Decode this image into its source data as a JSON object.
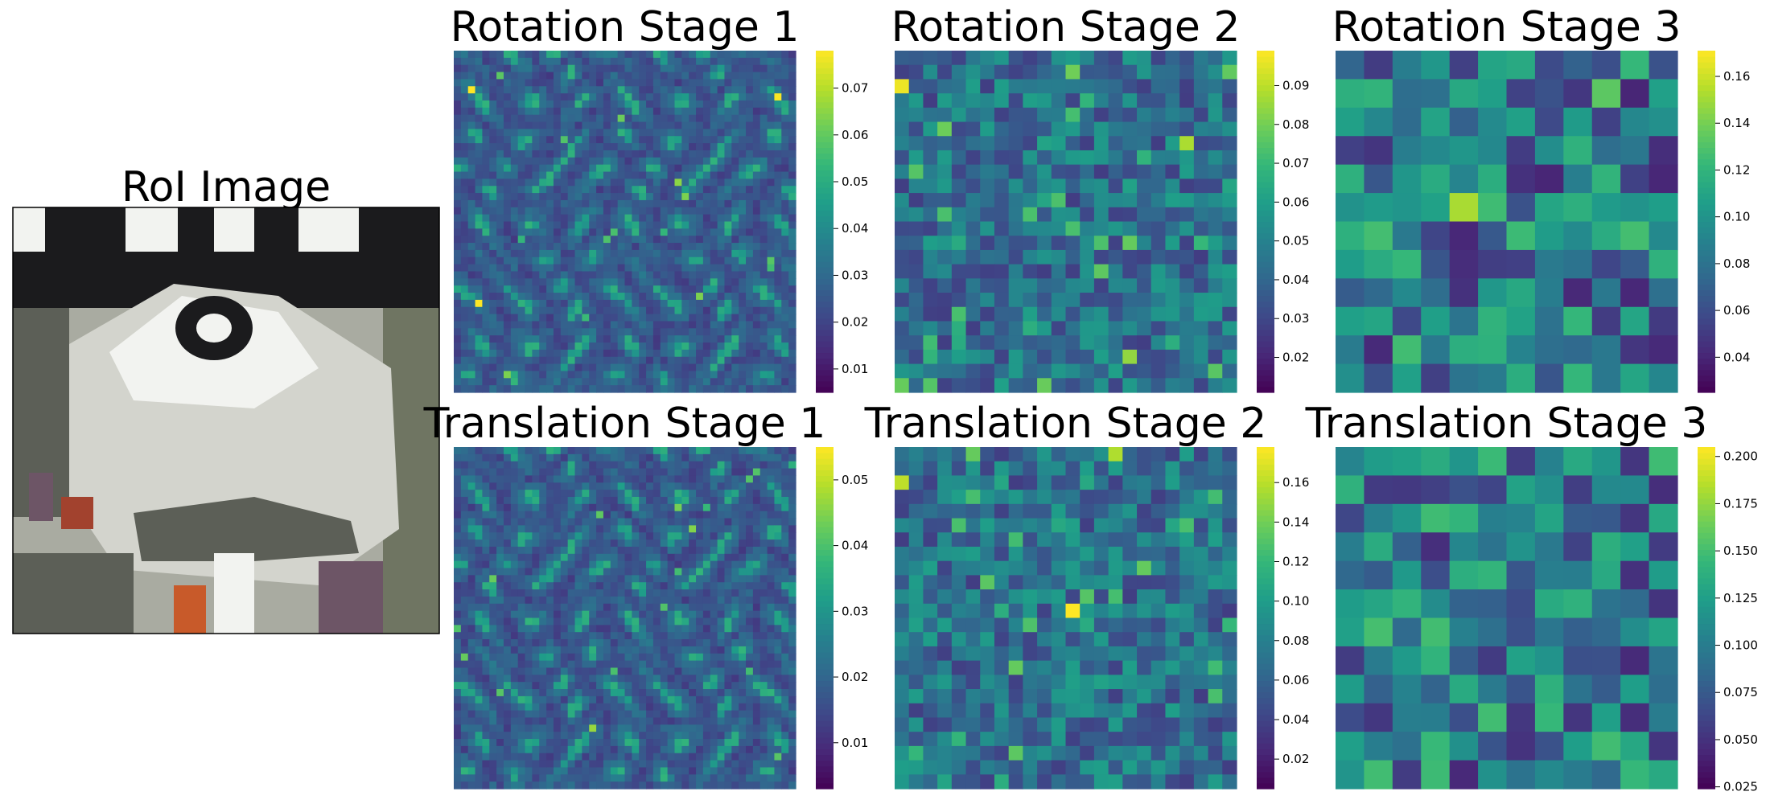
{
  "roi_title": "RoI Image",
  "colormap": "viridis",
  "colormap_stops": [
    "#440154",
    "#482878",
    "#3e4989",
    "#31688e",
    "#26828e",
    "#1f9e89",
    "#35b779",
    "#6ece58",
    "#b5de2b",
    "#fde725"
  ],
  "roi_colors": {
    "white": "#f2f3f0",
    "black": "#1b1b1d",
    "gray_light": "#d3d4cd",
    "gray_mid": "#a9aba1",
    "gray_dark": "#5c5f57",
    "olive": "#6f7562",
    "red": "#a2422e",
    "orange": "#c85a2a",
    "purple": "#6d5566"
  },
  "chart_data": [
    {
      "type": "heatmap",
      "title": "Rotation Stage 1",
      "grid": [
        48,
        48
      ],
      "pattern": "fine",
      "colorbar": {
        "min": 0.005,
        "max": 0.078,
        "ticks": [
          0.01,
          0.02,
          0.03,
          0.04,
          0.05,
          0.06,
          0.07
        ],
        "tick_labels": [
          "0.01",
          "0.02",
          "0.03",
          "0.04",
          "0.05",
          "0.06",
          "0.07"
        ]
      }
    },
    {
      "type": "heatmap",
      "title": "Rotation Stage 2",
      "grid": [
        24,
        24
      ],
      "pattern": "medium",
      "colorbar": {
        "min": 0.011,
        "max": 0.099,
        "ticks": [
          0.02,
          0.03,
          0.04,
          0.05,
          0.06,
          0.07,
          0.08,
          0.09
        ],
        "tick_labels": [
          "0.02",
          "0.03",
          "0.04",
          "0.05",
          "0.06",
          "0.07",
          "0.08",
          "0.09"
        ]
      }
    },
    {
      "type": "heatmap",
      "title": "Rotation Stage 3",
      "grid": [
        12,
        12
      ],
      "pattern": "coarse",
      "colorbar": {
        "min": 0.025,
        "max": 0.171,
        "ticks": [
          0.04,
          0.06,
          0.08,
          0.1,
          0.12,
          0.14,
          0.16
        ],
        "tick_labels": [
          "0.04",
          "0.06",
          "0.08",
          "0.10",
          "0.12",
          "0.14",
          "0.16"
        ]
      }
    },
    {
      "type": "heatmap",
      "title": "Translation Stage 1",
      "grid": [
        48,
        48
      ],
      "pattern": "fine",
      "colorbar": {
        "min": 0.003,
        "max": 0.055,
        "ticks": [
          0.01,
          0.02,
          0.03,
          0.04,
          0.05
        ],
        "tick_labels": [
          "0.01",
          "0.02",
          "0.03",
          "0.04",
          "0.05"
        ]
      }
    },
    {
      "type": "heatmap",
      "title": "Translation Stage 2",
      "grid": [
        24,
        24
      ],
      "pattern": "medium",
      "colorbar": {
        "min": 0.005,
        "max": 0.178,
        "ticks": [
          0.02,
          0.04,
          0.06,
          0.08,
          0.1,
          0.12,
          0.14,
          0.16
        ],
        "tick_labels": [
          "0.02",
          "0.04",
          "0.06",
          "0.08",
          "0.10",
          "0.12",
          "0.14",
          "0.16"
        ]
      }
    },
    {
      "type": "heatmap",
      "title": "Translation Stage 3",
      "grid": [
        12,
        12
      ],
      "pattern": "coarse",
      "colorbar": {
        "min": 0.024,
        "max": 0.205,
        "ticks": [
          0.025,
          0.05,
          0.075,
          0.1,
          0.125,
          0.15,
          0.175,
          0.2
        ],
        "tick_labels": [
          "0.025",
          "0.050",
          "0.075",
          "0.100",
          "0.125",
          "0.150",
          "0.175",
          "0.200"
        ]
      }
    }
  ]
}
